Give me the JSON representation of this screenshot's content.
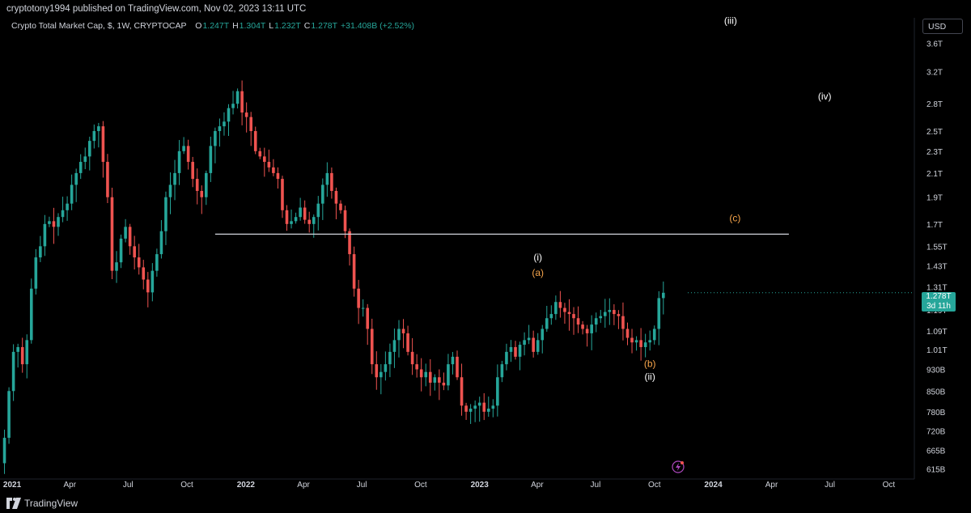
{
  "header": {
    "publisher": "cryptotony1994 published on TradingView.com, Nov 02, 2023 13:11 UTC"
  },
  "legend": {
    "name": "Crypto Total Market Cap, $, 1W, CRYPTOCAP",
    "o_label": "O",
    "o_value": "1.247T",
    "h_label": "H",
    "h_value": "1.304T",
    "l_label": "L",
    "l_value": "1.232T",
    "c_label": "C",
    "c_value": "1.278T",
    "change": "+31.408B (+2.52%)"
  },
  "currency": "USD",
  "footer": {
    "brand": "TradingView"
  },
  "price_badge": {
    "price": "1.278T",
    "countdown": "3d 11h"
  },
  "colors": {
    "up": "#26a69a",
    "down": "#ef5350",
    "annotation_orange": "#f7a54b",
    "annotation_white": "#ffffff",
    "line": "#d1d4dc"
  },
  "chart_data": {
    "type": "candlestick",
    "timeframe": "1W",
    "scale": "log",
    "ylim": [
      0.59,
      4.0
    ],
    "y_tick_labels": [
      "3.6T",
      "3.2T",
      "2.8T",
      "2.5T",
      "2.3T",
      "2.1T",
      "1.9T",
      "1.7T",
      "1.55T",
      "1.43T",
      "1.31T",
      "1.19T",
      "1.09T",
      "1.01T",
      "930B",
      "850B",
      "780B",
      "720B",
      "665B",
      "615B"
    ],
    "x_tick_labels": [
      "2021",
      "Apr",
      "Jul",
      "Oct",
      "2022",
      "Apr",
      "Jul",
      "Oct",
      "2023",
      "Apr",
      "Jul",
      "Oct",
      "2024",
      "Apr",
      "Jul",
      "Oct"
    ],
    "x_tick_dates": [
      "2021-01-01",
      "2021-04-01",
      "2021-07-01",
      "2021-10-01",
      "2022-01-01",
      "2022-04-01",
      "2022-07-01",
      "2022-10-01",
      "2023-01-01",
      "2023-04-01",
      "2023-07-01",
      "2023-10-01",
      "2024-01-01",
      "2024-04-01",
      "2024-07-01",
      "2024-10-01"
    ],
    "x_range": [
      "2020-12-13",
      "2024-11-10"
    ],
    "closes": [
      0.7,
      0.85,
      1.0,
      1.02,
      0.95,
      1.05,
      1.3,
      1.48,
      1.55,
      1.7,
      1.72,
      1.68,
      1.75,
      1.8,
      1.85,
      2.0,
      2.1,
      2.2,
      2.25,
      2.4,
      2.5,
      2.55,
      2.2,
      1.9,
      1.4,
      1.45,
      1.6,
      1.68,
      1.55,
      1.48,
      1.42,
      1.35,
      1.28,
      1.4,
      1.5,
      1.65,
      1.9,
      2.0,
      2.1,
      2.3,
      2.35,
      2.2,
      2.05,
      1.95,
      1.9,
      2.1,
      2.35,
      2.5,
      2.55,
      2.6,
      2.75,
      2.8,
      2.95,
      2.7,
      2.65,
      2.5,
      2.3,
      2.25,
      2.2,
      2.15,
      2.1,
      2.05,
      1.8,
      1.7,
      1.72,
      1.75,
      1.82,
      1.73,
      1.7,
      1.75,
      1.85,
      2.0,
      2.1,
      1.95,
      1.85,
      1.8,
      1.65,
      1.5,
      1.3,
      1.2,
      1.2,
      1.1,
      0.95,
      0.9,
      0.92,
      0.95,
      1.0,
      1.05,
      1.1,
      1.08,
      1.0,
      0.95,
      0.93,
      0.9,
      0.92,
      0.88,
      0.9,
      0.88,
      0.87,
      0.95,
      0.98,
      0.9,
      0.8,
      0.78,
      0.79,
      0.8,
      0.81,
      0.78,
      0.79,
      0.8,
      0.9,
      0.95,
      1.0,
      1.02,
      0.98,
      1.03,
      1.05,
      1.06,
      1.0,
      1.05,
      1.1,
      1.15,
      1.17,
      1.23,
      1.2,
      1.18,
      1.17,
      1.15,
      1.12,
      1.1,
      1.08,
      1.12,
      1.15,
      1.16,
      1.18,
      1.19,
      1.17,
      1.16,
      1.1,
      1.06,
      1.04,
      1.05,
      1.02,
      1.04,
      1.05,
      1.1,
      1.25,
      1.278
    ],
    "annotations": [
      {
        "label": "(iii)",
        "date": "2024-01-28",
        "value": 3.9,
        "color": "white"
      },
      {
        "label": "(iv)",
        "date": "2024-06-23",
        "value": 2.85,
        "color": "white"
      },
      {
        "label": "(c)",
        "date": "2024-02-04",
        "value": 1.72,
        "color": "orange"
      },
      {
        "label": "(i)",
        "date": "2023-04-02",
        "value": 1.46,
        "color": "white"
      },
      {
        "label": "(a)",
        "date": "2023-04-02",
        "value": 1.37,
        "color": "orange"
      },
      {
        "label": "(b)",
        "date": "2023-09-24",
        "value": 0.94,
        "color": "orange"
      },
      {
        "label": "(ii)",
        "date": "2023-09-24",
        "value": 0.89,
        "color": "white"
      }
    ],
    "horizontal_line": {
      "value": 1.63,
      "start": "2021-11-14",
      "end": "2024-04-28"
    }
  }
}
